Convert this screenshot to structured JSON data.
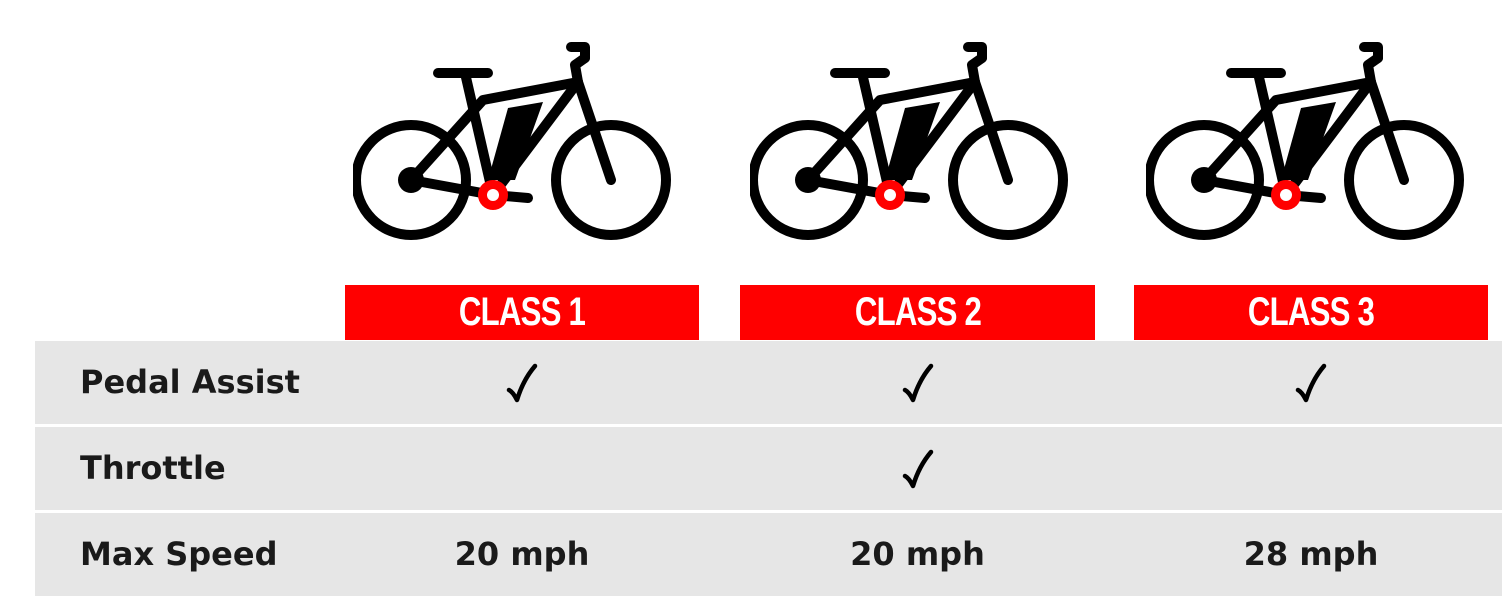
{
  "classes": [
    {
      "label": "CLASS 1"
    },
    {
      "label": "CLASS 2"
    },
    {
      "label": "CLASS 3"
    }
  ],
  "rows": [
    {
      "label": "Pedal Assist",
      "values": [
        "check",
        "check",
        "check"
      ]
    },
    {
      "label": "Throttle",
      "values": [
        "",
        "check",
        ""
      ]
    },
    {
      "label": "Max Speed",
      "values": [
        "20 mph",
        "20 mph",
        "28 mph"
      ]
    }
  ],
  "colors": {
    "accent": "#ff0000",
    "row_bg": "#e6e6e6",
    "text": "#1a1a1a"
  },
  "icons": {
    "bike": "ebike-icon",
    "check": "checkmark-icon"
  }
}
